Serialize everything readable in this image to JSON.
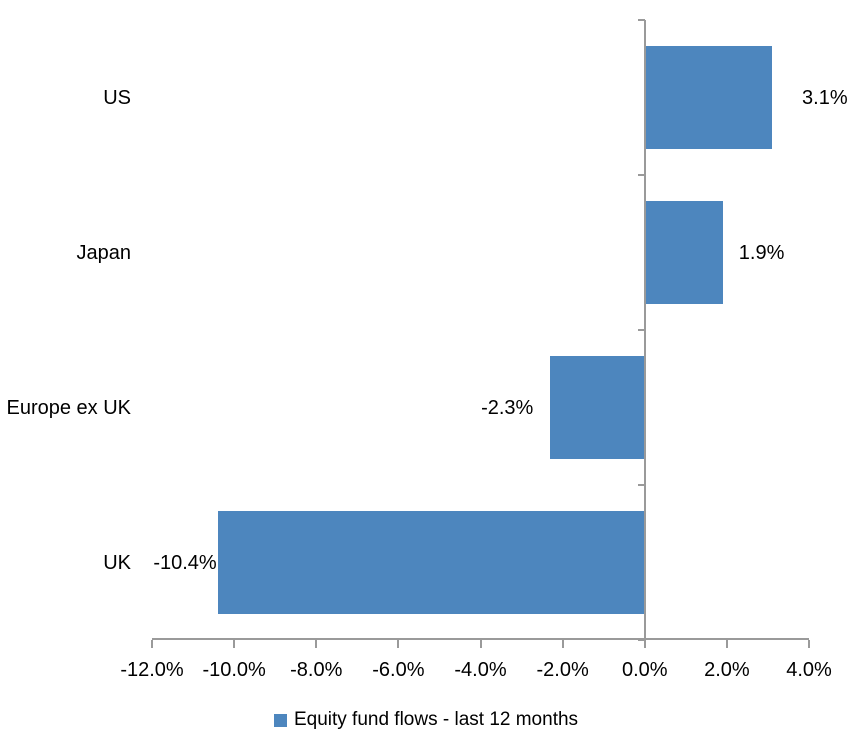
{
  "chart_data": {
    "type": "bar",
    "orientation": "horizontal",
    "title": "",
    "categories": [
      "US",
      "Japan",
      "Europe ex UK",
      "UK"
    ],
    "values": [
      3.1,
      1.9,
      -2.3,
      -10.4
    ],
    "value_labels": [
      "3.1%",
      "1.9%",
      "-2.3%",
      "-10.4%"
    ],
    "series": [
      {
        "name": "Equity fund flows - last 12 months",
        "values": [
          3.1,
          1.9,
          -2.3,
          -10.4
        ]
      }
    ],
    "xlim": [
      -12,
      4
    ],
    "x_tick_step": 2,
    "x_tick_labels": [
      "-12.0%",
      "-10.0%",
      "-8.0%",
      "-6.0%",
      "-4.0%",
      "-2.0%",
      "0.0%",
      "2.0%",
      "4.0%"
    ],
    "xlabel": "",
    "ylabel": "",
    "grid": false,
    "legend_position": "bottom",
    "data_label_position": "outside-end",
    "colors": {
      "bar": "#4d86be",
      "axis": "#9a9a9a",
      "text": "#000000",
      "background": "#ffffff"
    }
  },
  "legend": {
    "label": "Equity fund flows - last 12 months"
  }
}
